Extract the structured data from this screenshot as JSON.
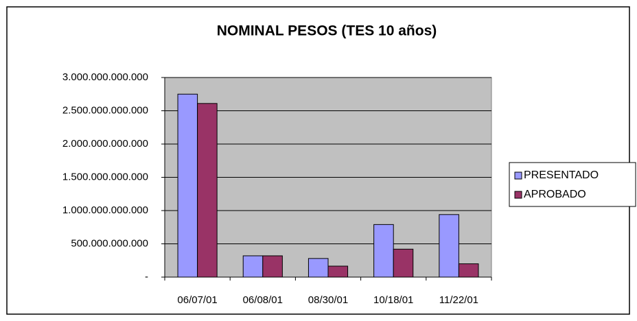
{
  "chart_data": {
    "type": "bar",
    "title": "NOMINAL PESOS (TES 10 años)",
    "categories": [
      "06/07/01",
      "06/08/01",
      "08/30/01",
      "10/18/01",
      "11/22/01"
    ],
    "series": [
      {
        "name": "PRESENTADO",
        "color": "#9999ff",
        "values": [
          2750000000000,
          320000000000,
          280000000000,
          790000000000,
          940000000000
        ]
      },
      {
        "name": "APROBADO",
        "color": "#993366",
        "values": [
          2610000000000,
          320000000000,
          165000000000,
          420000000000,
          200000000000
        ]
      }
    ],
    "ylim": [
      0,
      3000000000000
    ],
    "yticks": [
      {
        "value": 0,
        "label": "-"
      },
      {
        "value": 500000000000,
        "label": "500.000.000.000"
      },
      {
        "value": 1000000000000,
        "label": "1.000.000.000.000"
      },
      {
        "value": 1500000000000,
        "label": "1.500.000.000.000"
      },
      {
        "value": 2000000000000,
        "label": "2.000.000.000.000"
      },
      {
        "value": 2500000000000,
        "label": "2.500.000.000.000"
      },
      {
        "value": 3000000000000,
        "label": "3.000.000.000.000"
      }
    ],
    "grid": true,
    "legend": "right"
  }
}
